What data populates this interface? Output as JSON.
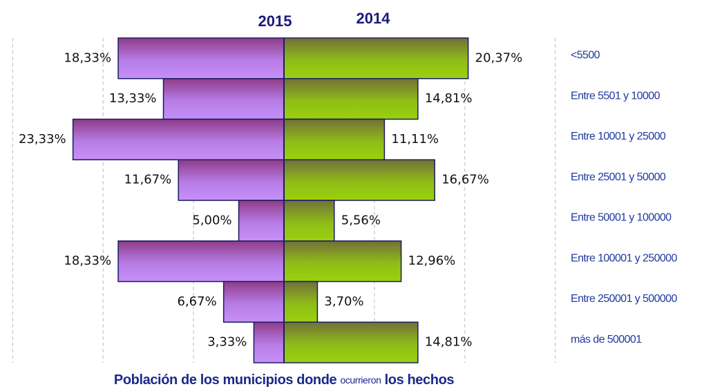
{
  "chart_data": {
    "type": "butterfly",
    "categories": [
      "<5500",
      "Entre 5501 y 10000",
      "Entre 10001 y 25000",
      "Entre 25001 y 50000",
      "Entre 50001 y 100000",
      "Entre 100001 y 250000",
      "Entre 250001 y 500000",
      "más de 500001"
    ],
    "series": [
      {
        "name": "2015",
        "color": "#b070d8",
        "side": "left",
        "values": [
          18.33,
          13.33,
          23.33,
          11.67,
          5.0,
          18.33,
          6.67,
          3.33
        ],
        "value_labels": [
          "18,33%",
          "13,33%",
          "23,33%",
          "11,67%",
          "5,00%",
          "18,33%",
          "6,67%",
          "3,33%"
        ]
      },
      {
        "name": "2014",
        "color": "#8fc010",
        "side": "right",
        "values": [
          20.37,
          14.81,
          11.11,
          16.67,
          5.56,
          12.96,
          3.7,
          14.81
        ],
        "value_labels": [
          "20,37%",
          "14,81%",
          "11,11%",
          "16,67%",
          "5,56%",
          "12,96%",
          "3,70%",
          "14,81%"
        ]
      }
    ],
    "xlabel": [
      "Población  de los municipios donde",
      "ocurrieron",
      "los hechos"
    ],
    "xlim": [
      -31.4,
      31.4
    ],
    "xticks": [
      -30,
      -20,
      -10,
      0,
      10,
      20,
      30
    ],
    "grid": true
  }
}
